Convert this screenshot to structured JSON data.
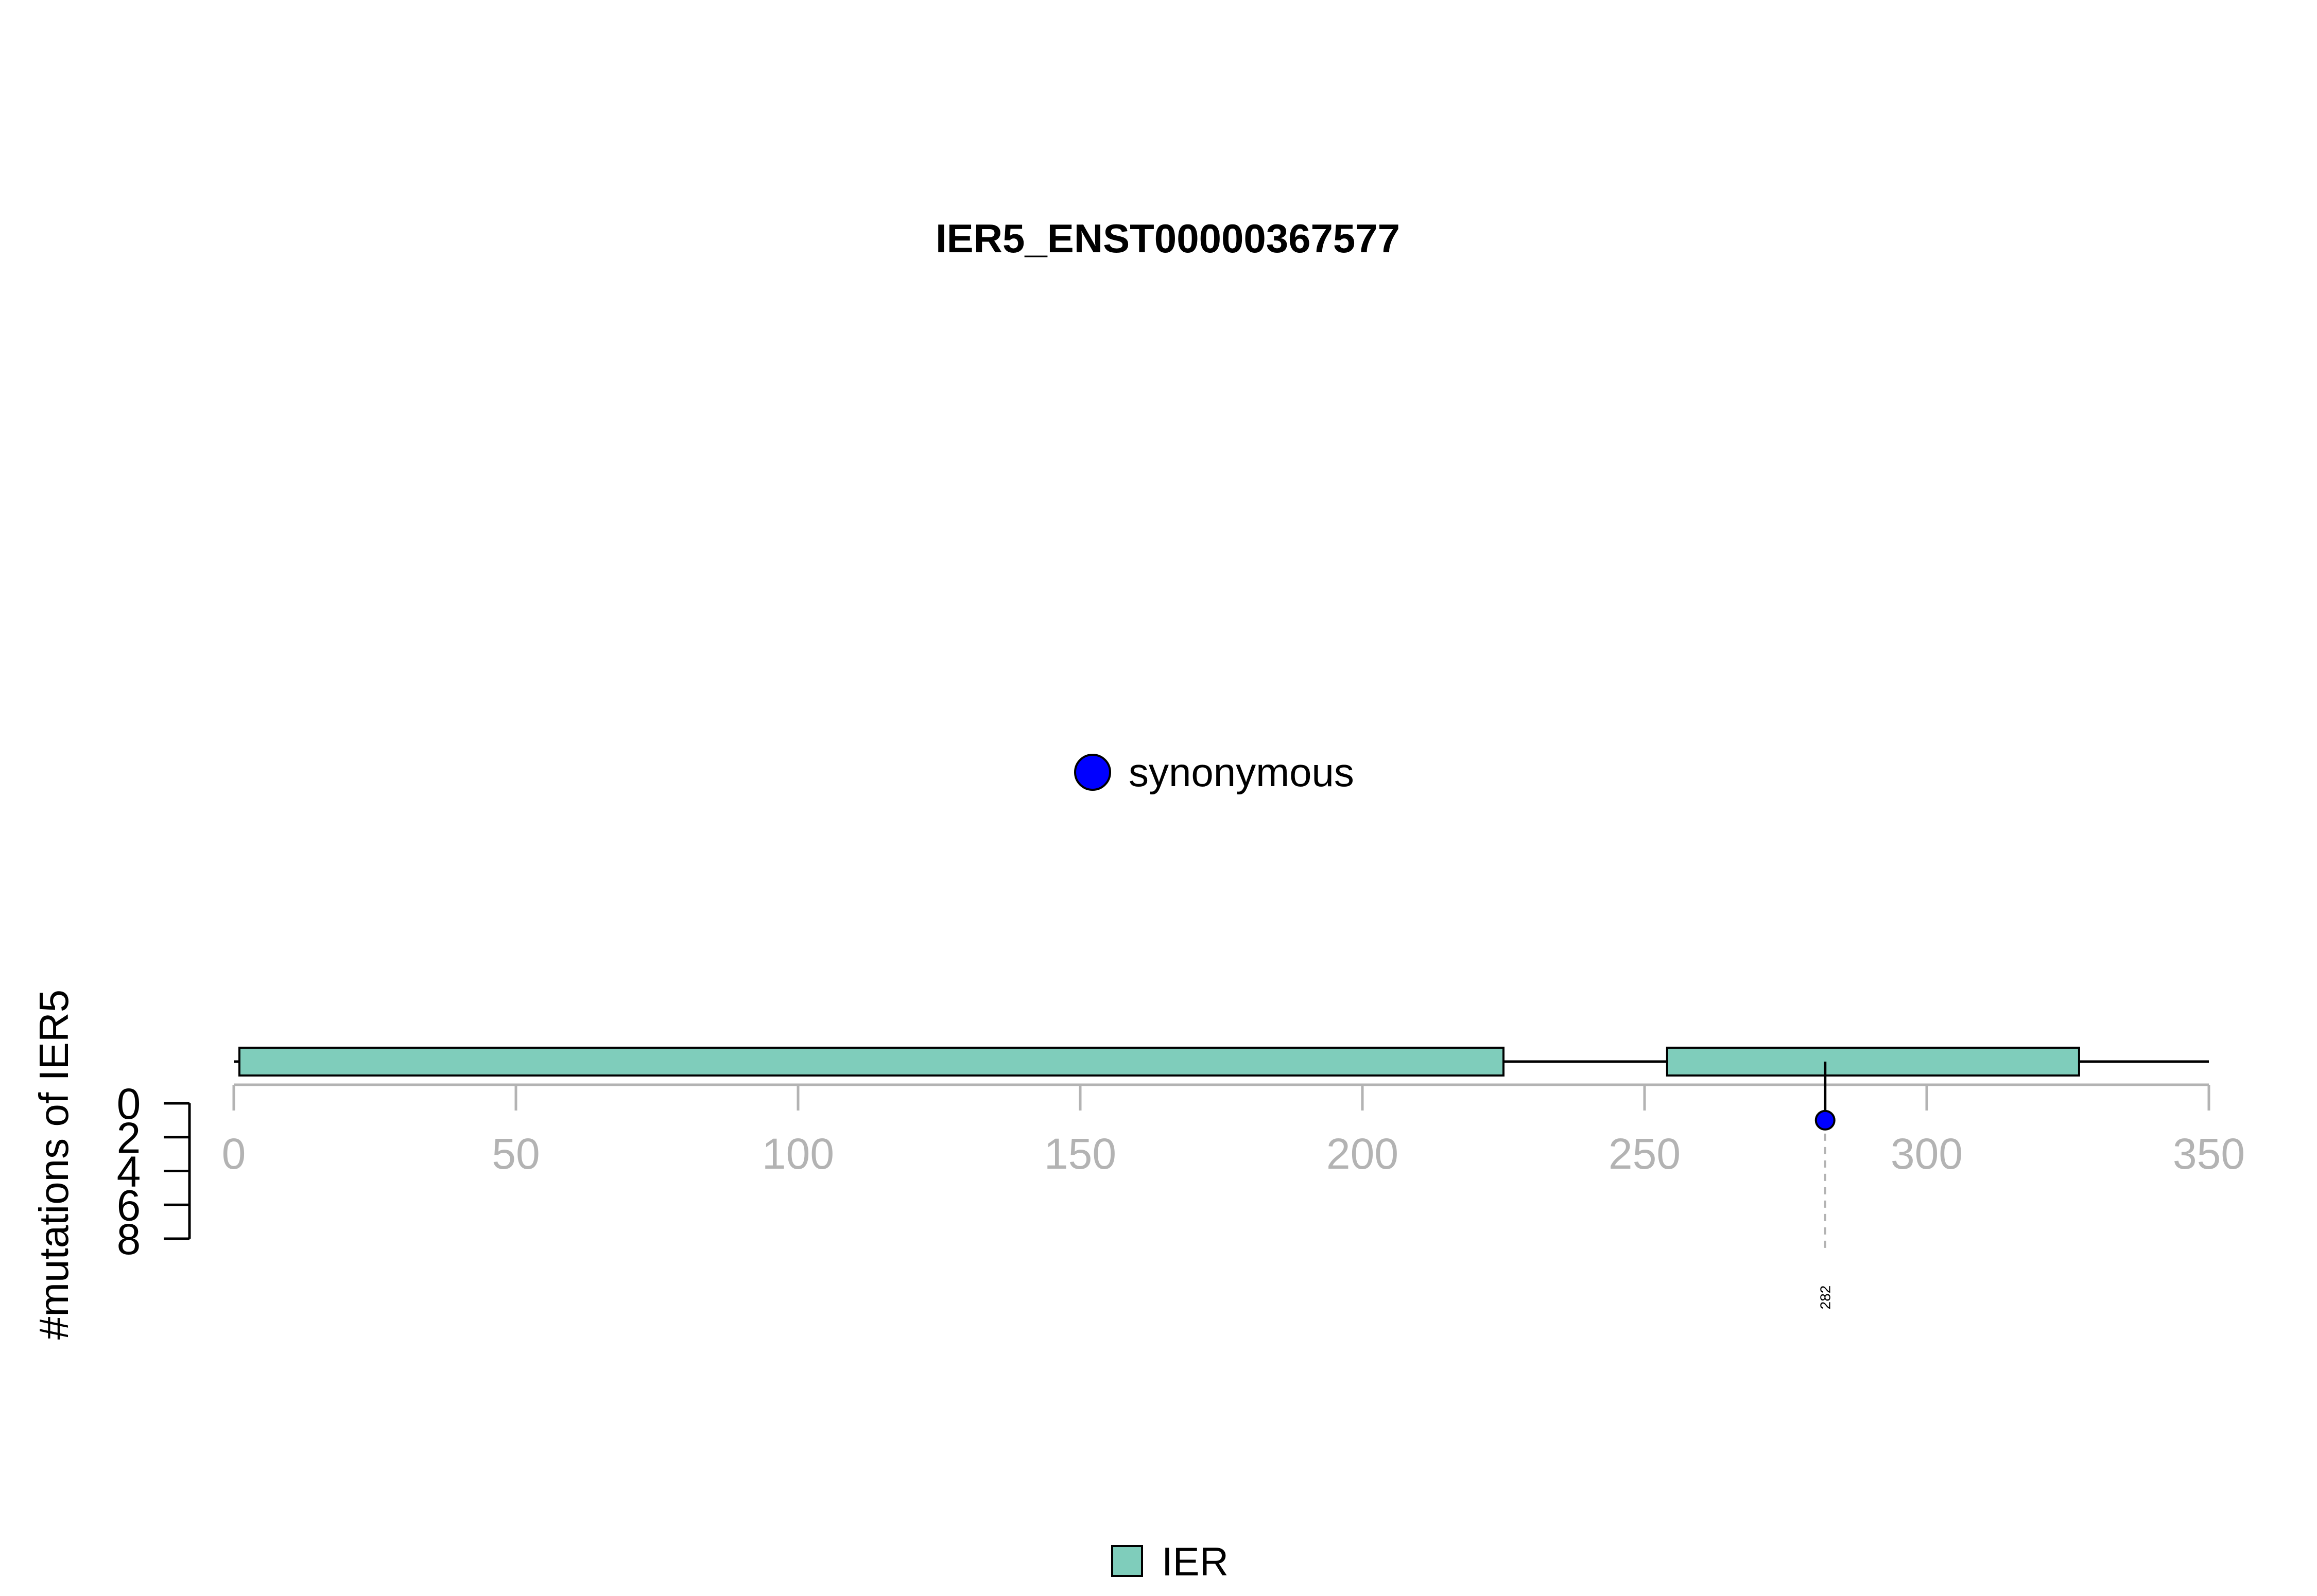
{
  "chart_data": {
    "type": "lollipop",
    "title": "IER5_ENST00000367577",
    "ylabel": "#mutations of IER5",
    "xlim": [
      0,
      350
    ],
    "x_ticks": [
      0,
      50,
      100,
      150,
      200,
      250,
      300,
      350
    ],
    "ylim": [
      0,
      8
    ],
    "y_ticks": [
      0,
      2,
      4,
      6,
      8
    ],
    "protein_length": 350,
    "domains": [
      {
        "name": "IER",
        "start": 1,
        "end": 225,
        "color": "#7fcdbb"
      },
      {
        "name": "IER",
        "start": 254,
        "end": 327,
        "color": "#7fcdbb"
      }
    ],
    "mutations": [
      {
        "position": 282,
        "count": 1,
        "type": "synonymous",
        "label": "282",
        "color": "#0000ff"
      }
    ],
    "mutation_legend": [
      {
        "label": "synonymous",
        "color": "#0000ff"
      }
    ],
    "domain_legend": [
      {
        "label": "IER",
        "color": "#7fcdbb"
      }
    ]
  }
}
